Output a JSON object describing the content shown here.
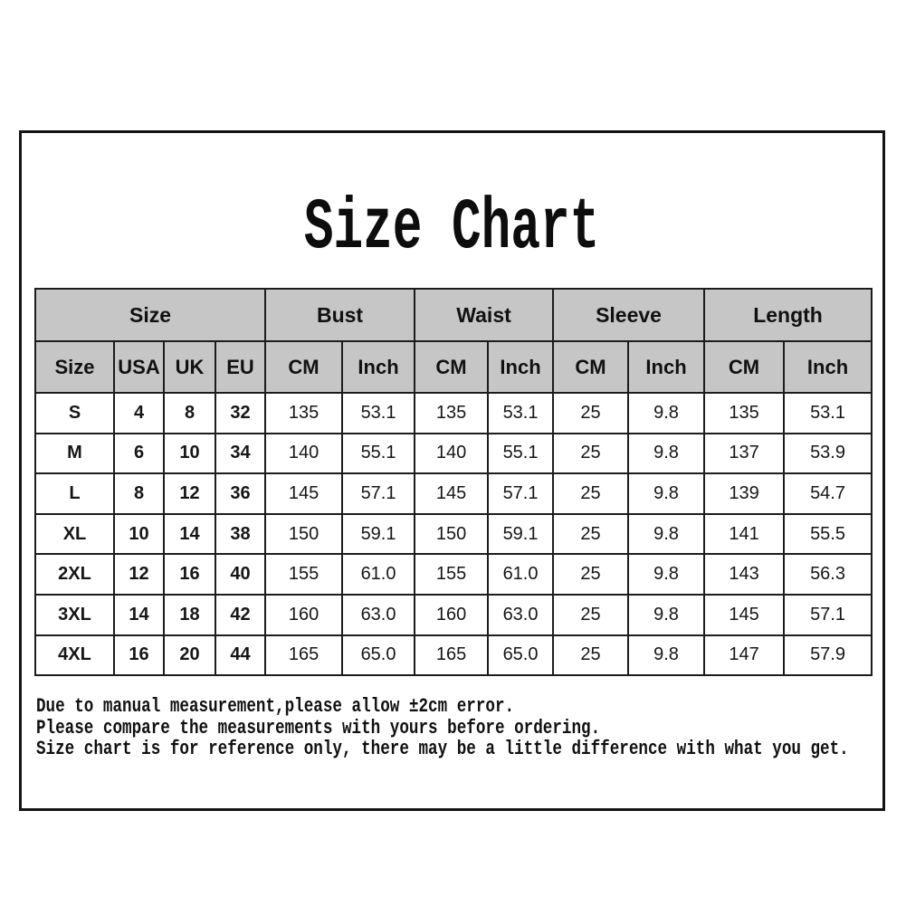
{
  "page": {
    "title": "Size Chart"
  },
  "table": {
    "group_headers": [
      {
        "label": "Size",
        "colspan": 4
      },
      {
        "label": "Bust",
        "colspan": 2
      },
      {
        "label": "Waist",
        "colspan": 2
      },
      {
        "label": "Sleeve",
        "colspan": 2
      },
      {
        "label": "Length",
        "colspan": 2
      }
    ],
    "sub_headers": [
      "Size",
      "USA",
      "UK",
      "EU",
      "CM",
      "Inch",
      "CM",
      "Inch",
      "CM",
      "Inch",
      "CM",
      "Inch"
    ],
    "rows": [
      [
        "S",
        "4",
        "8",
        "32",
        "135",
        "53.1",
        "135",
        "53.1",
        "25",
        "9.8",
        "135",
        "53.1"
      ],
      [
        "M",
        "6",
        "10",
        "34",
        "140",
        "55.1",
        "140",
        "55.1",
        "25",
        "9.8",
        "137",
        "53.9"
      ],
      [
        "L",
        "8",
        "12",
        "36",
        "145",
        "57.1",
        "145",
        "57.1",
        "25",
        "9.8",
        "139",
        "54.7"
      ],
      [
        "XL",
        "10",
        "14",
        "38",
        "150",
        "59.1",
        "150",
        "59.1",
        "25",
        "9.8",
        "141",
        "55.5"
      ],
      [
        "2XL",
        "12",
        "16",
        "40",
        "155",
        "61.0",
        "155",
        "61.0",
        "25",
        "9.8",
        "143",
        "56.3"
      ],
      [
        "3XL",
        "14",
        "18",
        "42",
        "160",
        "63.0",
        "160",
        "63.0",
        "25",
        "9.8",
        "145",
        "57.1"
      ],
      [
        "4XL",
        "16",
        "20",
        "44",
        "165",
        "65.0",
        "165",
        "65.0",
        "25",
        "9.8",
        "147",
        "57.9"
      ]
    ]
  },
  "notes": [
    "Due to manual measurement,please allow ±2cm error.",
    "Please compare the measurements with yours before ordering.",
    "Size chart is for reference only, there may be a little difference with what you get."
  ],
  "colors": {
    "header_bg": "#c6c6c6",
    "border": "#1c1c1c",
    "text": "#161616",
    "background": "#ffffff"
  }
}
